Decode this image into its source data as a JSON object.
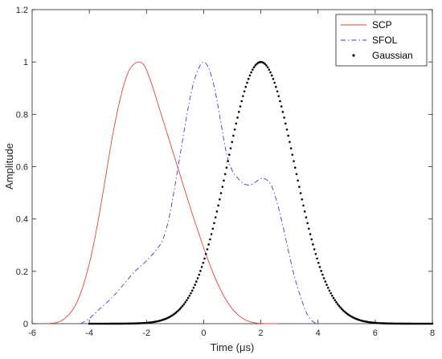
{
  "chart_data": {
    "type": "line",
    "title": "",
    "xlabel": "Time (μs)",
    "ylabel": "Amplitude",
    "xlim": [
      -6,
      8
    ],
    "ylim": [
      0,
      1.2
    ],
    "xticks": [
      -6,
      -4,
      -2,
      0,
      2,
      4,
      6,
      8
    ],
    "xtick_labels": [
      "-6",
      "-4",
      "-2",
      "0",
      "2",
      "4",
      "6",
      "8"
    ],
    "yticks": [
      0,
      0.2,
      0.4,
      0.6,
      0.8,
      1,
      1.2
    ],
    "ytick_labels": [
      "0",
      "0.2",
      "0.4",
      "0.6",
      "0.8",
      "1",
      "1.2"
    ],
    "grid": false,
    "legend_position": "top-right",
    "series": [
      {
        "name": "SCP",
        "style": "solid",
        "color": "#e8423a",
        "x": [
          -5.5,
          -5.2,
          -5.0,
          -4.8,
          -4.6,
          -4.4,
          -4.2,
          -4.0,
          -3.8,
          -3.6,
          -3.4,
          -3.2,
          -3.0,
          -2.8,
          -2.6,
          -2.4,
          -2.25,
          -2.1,
          -2.0,
          -1.8,
          -1.6,
          -1.4,
          -1.2,
          -1.0,
          -0.8,
          -0.6,
          -0.4,
          -0.2,
          0.0,
          0.2,
          0.4,
          0.6,
          0.8,
          1.0,
          1.2,
          1.4,
          1.6,
          1.8,
          2.0,
          2.2,
          2.4,
          2.6
        ],
        "y": [
          0.0,
          0.003,
          0.01,
          0.025,
          0.05,
          0.09,
          0.15,
          0.23,
          0.33,
          0.45,
          0.58,
          0.71,
          0.82,
          0.91,
          0.97,
          0.995,
          1.0,
          0.99,
          0.97,
          0.91,
          0.84,
          0.77,
          0.7,
          0.63,
          0.56,
          0.49,
          0.42,
          0.355,
          0.29,
          0.23,
          0.175,
          0.128,
          0.088,
          0.057,
          0.034,
          0.018,
          0.008,
          0.003,
          0.001,
          0.0,
          0.0,
          0.0
        ]
      },
      {
        "name": "SFOL",
        "style": "dashdot",
        "color": "#3b3bd6",
        "x": [
          -4.3,
          -4.0,
          -3.6,
          -3.2,
          -2.8,
          -2.4,
          -2.0,
          -1.6,
          -1.4,
          -1.2,
          -1.0,
          -0.8,
          -0.6,
          -0.4,
          -0.2,
          0.0,
          0.2,
          0.4,
          0.6,
          0.8,
          1.0,
          1.2,
          1.4,
          1.6,
          1.8,
          2.0,
          2.2,
          2.4,
          2.6,
          2.8,
          3.0,
          3.2,
          3.4,
          3.6,
          3.8,
          3.95
        ],
        "y": [
          0.0,
          0.02,
          0.06,
          0.1,
          0.15,
          0.2,
          0.24,
          0.29,
          0.33,
          0.41,
          0.53,
          0.66,
          0.79,
          0.9,
          0.97,
          1.0,
          0.97,
          0.89,
          0.77,
          0.65,
          0.585,
          0.555,
          0.535,
          0.53,
          0.54,
          0.555,
          0.55,
          0.52,
          0.45,
          0.36,
          0.26,
          0.17,
          0.1,
          0.04,
          0.01,
          0.0
        ]
      },
      {
        "name": "Gaussian",
        "style": "dotted",
        "color": "#000000",
        "mean": 2,
        "peak": 1,
        "x_start": -4,
        "x_end": 8,
        "sigma": 1.18
      }
    ]
  }
}
